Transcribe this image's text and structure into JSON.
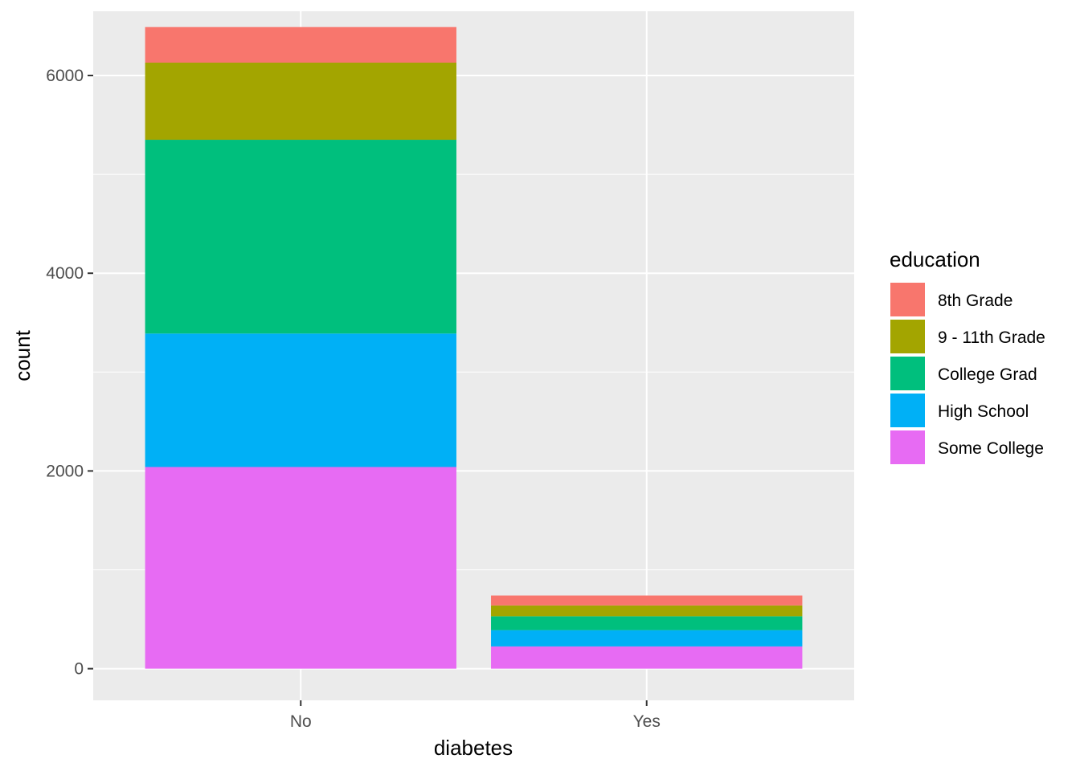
{
  "chart_data": {
    "type": "bar",
    "stacked": true,
    "categories": [
      "No",
      "Yes"
    ],
    "xlabel": "diabetes",
    "ylabel": "count",
    "ylim": [
      -320,
      6650
    ],
    "yticks": [
      0,
      2000,
      4000,
      6000
    ],
    "ytick_labels": [
      "0",
      "2000",
      "4000",
      "6000"
    ],
    "grid": true,
    "legend": {
      "title": "education",
      "placement": "right"
    },
    "series": [
      {
        "name": "Some College",
        "color": "#E76BF3",
        "values": [
          2040,
          225
        ]
      },
      {
        "name": "High School",
        "color": "#00B0F6",
        "values": [
          1350,
          165
        ]
      },
      {
        "name": "College Grad",
        "color": "#00BF7D",
        "values": [
          1960,
          140
        ]
      },
      {
        "name": "9 - 11th Grade",
        "color": "#A3A500",
        "values": [
          780,
          110
        ]
      },
      {
        "name": "8th Grade",
        "color": "#F8766D",
        "values": [
          360,
          100
        ]
      }
    ],
    "legend_order": [
      "8th Grade",
      "9 - 11th Grade",
      "College Grad",
      "High School",
      "Some College"
    ],
    "panel_background": "#EBEBEB",
    "grid_color": "#FFFFFF"
  }
}
